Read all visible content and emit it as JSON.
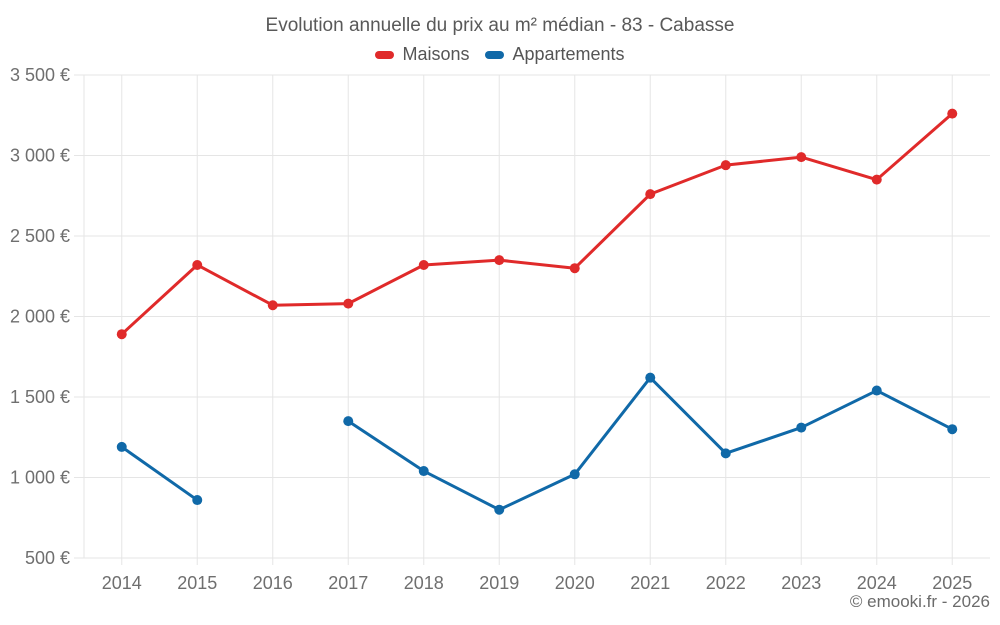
{
  "header": {
    "title": "Evolution annuelle du prix au m² médian - 83 - Cabasse"
  },
  "legend": {
    "items": [
      {
        "label": "Maisons",
        "color": "#e02a2a"
      },
      {
        "label": "Appartements",
        "color": "#1069a8"
      }
    ]
  },
  "footer": {
    "credit": "© emooki.fr - 2026"
  },
  "chart_data": {
    "type": "line",
    "title": "Evolution annuelle du prix au m² médian - 83 - Cabasse",
    "categories": [
      "2014",
      "2015",
      "2016",
      "2017",
      "2018",
      "2019",
      "2020",
      "2021",
      "2022",
      "2023",
      "2024",
      "2025"
    ],
    "series": [
      {
        "name": "Maisons",
        "color": "#e02a2a",
        "values": [
          1890,
          2320,
          2070,
          2080,
          2320,
          2350,
          2300,
          2760,
          2940,
          2990,
          2850,
          3260
        ]
      },
      {
        "name": "Appartements",
        "color": "#1069a8",
        "values": [
          1190,
          860,
          null,
          1350,
          1040,
          800,
          1020,
          1620,
          1150,
          1310,
          1540,
          1300
        ]
      }
    ],
    "xlabel": "",
    "ylabel": "",
    "ylim": [
      500,
      3500
    ],
    "ytick_step": 500,
    "ytick_labels": [
      "500 €",
      "1 000 €",
      "1 500 €",
      "2 000 €",
      "2 500 €",
      "3 000 €",
      "3 500 €"
    ],
    "grid": true,
    "legend_position": "top",
    "unit": "€"
  }
}
